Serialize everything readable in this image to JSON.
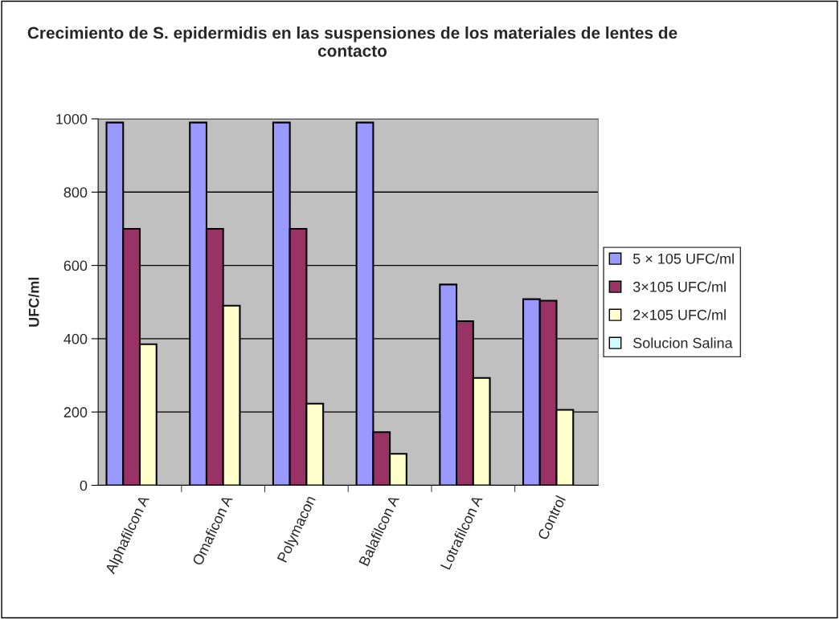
{
  "chart_data": {
    "type": "bar",
    "title": "Crecimiento de S. epidermidis en las suspensiones de los materiales de lentes de contacto",
    "ylabel": "UFC/ml",
    "categories": [
      "Alphafilcon A",
      "Omaficon A",
      "Polymacon",
      "Balafilcon A",
      "Lotrafilcon A",
      "Control"
    ],
    "series": [
      {
        "name": "5 × 105 UFC/ml",
        "color": "#9999ff",
        "values": [
          990,
          990,
          990,
          990,
          548,
          508
        ]
      },
      {
        "name": "3×105 UFC/ml",
        "color": "#993366",
        "values": [
          700,
          700,
          700,
          145,
          448,
          504
        ]
      },
      {
        "name": "2×105 UFC/ml",
        "color": "#ffffcc",
        "values": [
          385,
          490,
          223,
          86,
          293,
          206
        ]
      },
      {
        "name": "Solucion Salina",
        "color": "#ccffff",
        "values": [
          null,
          null,
          null,
          null,
          null,
          null
        ]
      }
    ],
    "ylim": [
      0,
      1000
    ],
    "yticks": [
      0,
      200,
      400,
      600,
      800,
      1000
    ],
    "grid": "y",
    "legend": "right"
  }
}
